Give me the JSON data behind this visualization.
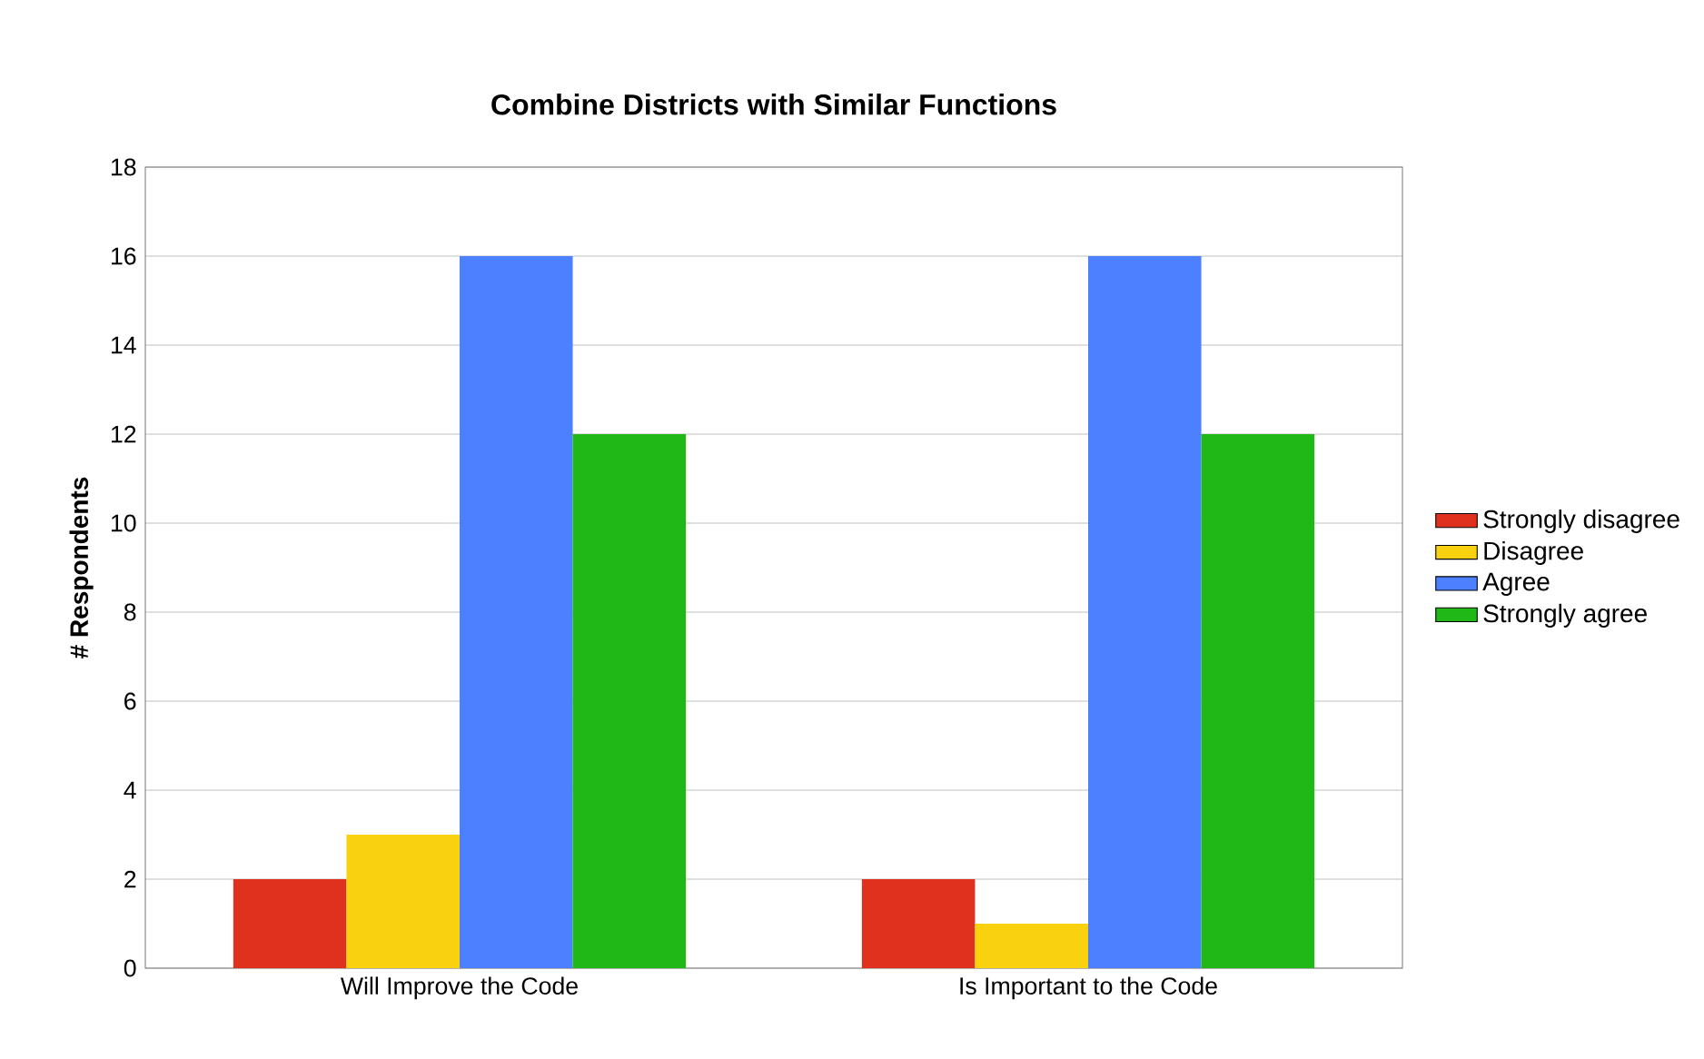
{
  "chart_data": {
    "type": "bar",
    "title": "Combine Districts with Similar Functions",
    "ylabel": "# Respondents",
    "categories": [
      "Will Improve the Code",
      "Is Important to the Code"
    ],
    "series": [
      {
        "name": "Strongly disagree",
        "color": "#e0301e",
        "values": [
          2,
          2
        ]
      },
      {
        "name": "Disagree",
        "color": "#f9d10f",
        "values": [
          3,
          1
        ]
      },
      {
        "name": "Agree",
        "color": "#4d80ff",
        "values": [
          16,
          16
        ]
      },
      {
        "name": "Strongly agree",
        "color": "#1fb816",
        "values": [
          12,
          12
        ]
      }
    ],
    "ylim": [
      0,
      18
    ],
    "yticks": [
      0,
      2,
      4,
      6,
      8,
      10,
      12,
      14,
      16,
      18
    ],
    "grid": "y",
    "legend": "right"
  }
}
